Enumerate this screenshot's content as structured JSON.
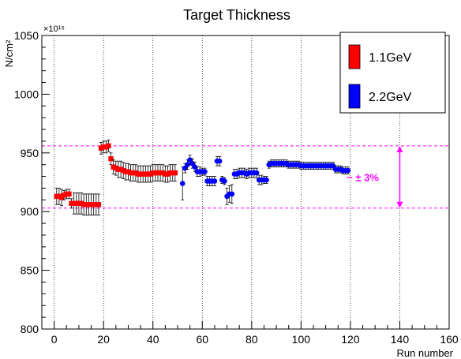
{
  "colors": {
    "series_1": "#ff0000",
    "series_2": "#0000ff",
    "band": "#ff00ff",
    "frame": "#000000",
    "grid": "#000000"
  },
  "chart_data": {
    "type": "scatter",
    "title": "Target Thickness",
    "xlabel": "Run number",
    "ylabel": "N/cm²",
    "y_exponent_label": "×10¹⁵",
    "xlim": [
      -5,
      160
    ],
    "ylim": [
      800,
      1050
    ],
    "x_ticks": [
      0,
      20,
      40,
      60,
      80,
      100,
      120,
      140,
      160
    ],
    "y_ticks": [
      800,
      850,
      900,
      950,
      1000,
      1050
    ],
    "grid": "vertical dotted",
    "legend_position": "top-right",
    "band": {
      "upper": 956,
      "lower": 903,
      "label": "~ ± 3%"
    },
    "series": [
      {
        "name": "1.1GeV",
        "color": "red",
        "marker": "square",
        "error": [
          7,
          7,
          7,
          4,
          4,
          4,
          4,
          9,
          9,
          9,
          9,
          9,
          9,
          9,
          9,
          9,
          9,
          9,
          5,
          5,
          5,
          5,
          5,
          6,
          6,
          7,
          7,
          7,
          7,
          7,
          7,
          7,
          7,
          7,
          7,
          7,
          7,
          7,
          7,
          7,
          7,
          7,
          7,
          7,
          7,
          7,
          7,
          7,
          7,
          7
        ],
        "points": [
          [
            1,
            913
          ],
          [
            2,
            913
          ],
          [
            3,
            912
          ],
          [
            4,
            914
          ],
          [
            5,
            915
          ],
          [
            6,
            915
          ],
          [
            7,
            907
          ],
          [
            8,
            907
          ],
          [
            9,
            907
          ],
          [
            10,
            907
          ],
          [
            11,
            907
          ],
          [
            12,
            906
          ],
          [
            13,
            906
          ],
          [
            14,
            906
          ],
          [
            15,
            906
          ],
          [
            16,
            906
          ],
          [
            17,
            906
          ],
          [
            18,
            906
          ],
          [
            19,
            954
          ],
          [
            20,
            955
          ],
          [
            21,
            955
          ],
          [
            22,
            956
          ],
          [
            23,
            945
          ],
          [
            24,
            938
          ],
          [
            25,
            937
          ],
          [
            26,
            936
          ],
          [
            27,
            936
          ],
          [
            28,
            935
          ],
          [
            29,
            934
          ],
          [
            30,
            934
          ],
          [
            31,
            933
          ],
          [
            32,
            933
          ],
          [
            33,
            933
          ],
          [
            34,
            932
          ],
          [
            35,
            932
          ],
          [
            36,
            932
          ],
          [
            37,
            932
          ],
          [
            38,
            932
          ],
          [
            39,
            932
          ],
          [
            40,
            933
          ],
          [
            41,
            933
          ],
          [
            42,
            933
          ],
          [
            43,
            933
          ],
          [
            44,
            933
          ],
          [
            45,
            932
          ],
          [
            46,
            932
          ],
          [
            47,
            933
          ],
          [
            48,
            933
          ],
          [
            49,
            933
          ]
        ]
      },
      {
        "name": "2.2GeV",
        "color": "blue",
        "marker": "circle",
        "error": [
          14,
          4,
          4,
          4,
          4,
          4,
          4,
          4,
          3,
          3,
          4,
          4,
          4,
          4,
          4,
          4,
          3,
          3,
          7,
          7,
          8,
          4,
          4,
          4,
          4,
          4,
          4,
          4,
          4,
          4,
          4,
          4,
          4,
          3,
          3,
          3,
          3,
          3,
          3,
          3,
          3,
          3,
          3,
          3,
          3,
          3,
          3,
          3,
          3,
          3,
          3,
          3,
          3,
          3,
          3,
          3,
          3,
          3,
          3,
          3,
          3,
          3,
          3,
          3,
          3,
          3,
          3,
          3
        ],
        "points": [
          [
            52,
            924
          ],
          [
            53,
            937
          ],
          [
            54,
            940
          ],
          [
            55,
            944
          ],
          [
            56,
            941
          ],
          [
            57,
            938
          ],
          [
            58,
            934
          ],
          [
            59,
            934
          ],
          [
            60,
            934
          ],
          [
            61,
            934
          ],
          [
            62,
            926
          ],
          [
            63,
            926
          ],
          [
            64,
            926
          ],
          [
            65,
            926
          ],
          [
            66,
            943
          ],
          [
            67,
            943
          ],
          [
            68,
            927
          ],
          [
            69,
            926
          ],
          [
            70,
            913
          ],
          [
            71,
            915
          ],
          [
            72,
            915
          ],
          [
            73,
            932
          ],
          [
            74,
            932
          ],
          [
            75,
            933
          ],
          [
            76,
            933
          ],
          [
            77,
            933
          ],
          [
            78,
            932
          ],
          [
            79,
            933
          ],
          [
            80,
            933
          ],
          [
            81,
            933
          ],
          [
            82,
            933
          ],
          [
            83,
            927
          ],
          [
            84,
            927
          ],
          [
            85,
            927
          ],
          [
            86,
            927
          ],
          [
            87,
            940
          ],
          [
            88,
            941
          ],
          [
            89,
            941
          ],
          [
            90,
            941
          ],
          [
            91,
            941
          ],
          [
            92,
            941
          ],
          [
            93,
            941
          ],
          [
            94,
            941
          ],
          [
            95,
            940
          ],
          [
            96,
            940
          ],
          [
            97,
            940
          ],
          [
            98,
            940
          ],
          [
            99,
            940
          ],
          [
            100,
            939
          ],
          [
            101,
            939
          ],
          [
            102,
            939
          ],
          [
            103,
            939
          ],
          [
            104,
            939
          ],
          [
            105,
            939
          ],
          [
            106,
            939
          ],
          [
            107,
            939
          ],
          [
            108,
            939
          ],
          [
            109,
            939
          ],
          [
            110,
            939
          ],
          [
            111,
            939
          ],
          [
            112,
            939
          ],
          [
            113,
            939
          ],
          [
            114,
            936
          ],
          [
            115,
            936
          ],
          [
            116,
            936
          ],
          [
            117,
            935
          ],
          [
            118,
            935
          ],
          [
            119,
            935
          ]
        ]
      }
    ]
  }
}
